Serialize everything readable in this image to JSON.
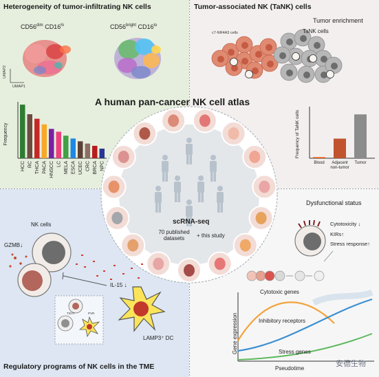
{
  "main_title": "A human pan-cancer NK cell atlas",
  "q1": {
    "title": "Heterogeneity of tumor-infiltrating NK cells",
    "umap_left_label": "CD56dim CD16hi",
    "umap_right_label": "CD56bright CD16lo",
    "umap_axis_y": "UMAP2",
    "umap_axis_x": "UMAP1",
    "bar_ylabel": "Frequency",
    "bar_categories": [
      "HCC",
      "RC",
      "THCA",
      "PACA",
      "HNSCC",
      "LC",
      "MELA",
      "ESCA",
      "UCEC",
      "CRC",
      "BRCA",
      "NPC"
    ],
    "bar_values": [
      0.95,
      0.78,
      0.7,
      0.6,
      0.52,
      0.47,
      0.4,
      0.35,
      0.3,
      0.26,
      0.22,
      0.17
    ],
    "bar_colors": [
      "#2e7d32",
      "#6d4c41",
      "#c62828",
      "#f9a825",
      "#7b1fa2",
      "#ec407a",
      "#43a047",
      "#1e88e5",
      "#5d4037",
      "#8d6e63",
      "#b71c1c",
      "#283593"
    ]
  },
  "q2": {
    "title": "Tumor-associated NK (TaNK) cells",
    "tumor_enrichment": "Tumor enrichment",
    "c7_label": "c7-NR4A3 cells",
    "tank_label": "TaNK cells",
    "bar_ylabel": "Frequency of TaNK cells",
    "bar_categories": [
      "Blood",
      "Adjacent\nnon-tumor",
      "Tumor"
    ],
    "bar_values": [
      0.02,
      0.38,
      0.85
    ],
    "bar_colors": [
      "#e65100",
      "#c1532f",
      "#8c8c8c"
    ]
  },
  "center": {
    "method": "scRNA-seq",
    "datasets": "70 published datasets",
    "plus_study": "+ this study",
    "organ_icons": [
      "thyroid-icon",
      "head-icon",
      "nose-icon",
      "breast-icon",
      "esophagus-icon",
      "stomach-icon",
      "uterus-icon",
      "kidney-icon",
      "skin-icon",
      "colon-icon",
      "bone-icon",
      "pancreas-icon",
      "oral-icon",
      "liver-icon",
      "lung-icon"
    ]
  },
  "q3": {
    "title": "Regulatory programs of NK cells in the TME",
    "nk_cells": "NK cells",
    "gzmb": "GZMB",
    "il15": "IL-15",
    "lamp3": "LAMP3⁺ DC",
    "tigit_label": "TIGIT",
    "pvr_label": "PVR"
  },
  "q4": {
    "title": "Dysfunctional status",
    "cytotoxicity": "Cytotoxicity ↓",
    "kirs": "KIRs↑",
    "stress_response": "Stress response↑",
    "cytotoxic_genes": "Cytotoxic genes",
    "inhibitory": "Inhibitory receptors",
    "stress_genes": "Stress genes",
    "ylabel": "Gene expression",
    "xlabel": "Pseudotime"
  },
  "watermark": "安德生物",
  "colors": {
    "q1_bg": "#e6efde",
    "q2_bg": "#f3efef",
    "q3_bg": "#dde6f2",
    "q4_bg": "#f6f6f6",
    "center_bg": "#e4e7ea",
    "icon_bg": "#f3dcd6"
  }
}
